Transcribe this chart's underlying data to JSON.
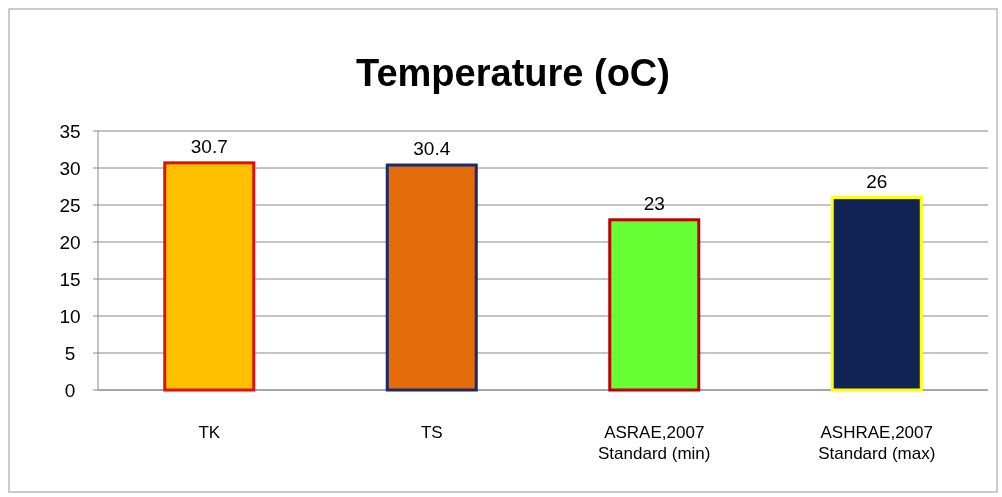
{
  "chart_data": {
    "type": "bar",
    "title": "Temperature (oC)",
    "categories": [
      "TK",
      "TS",
      "ASRAE,2007\nStandard (min)",
      "ASHRAE,2007\nStandard (max)"
    ],
    "values": [
      30.7,
      30.4,
      23,
      26
    ],
    "colors": [
      "#ffc000",
      "#e46c0a",
      "#66ff33",
      "#0f2454"
    ],
    "ylim": [
      0,
      35
    ],
    "yticks": [
      0,
      5,
      10,
      15,
      20,
      25,
      30,
      35
    ],
    "grid": "y",
    "data_labels": true
  }
}
